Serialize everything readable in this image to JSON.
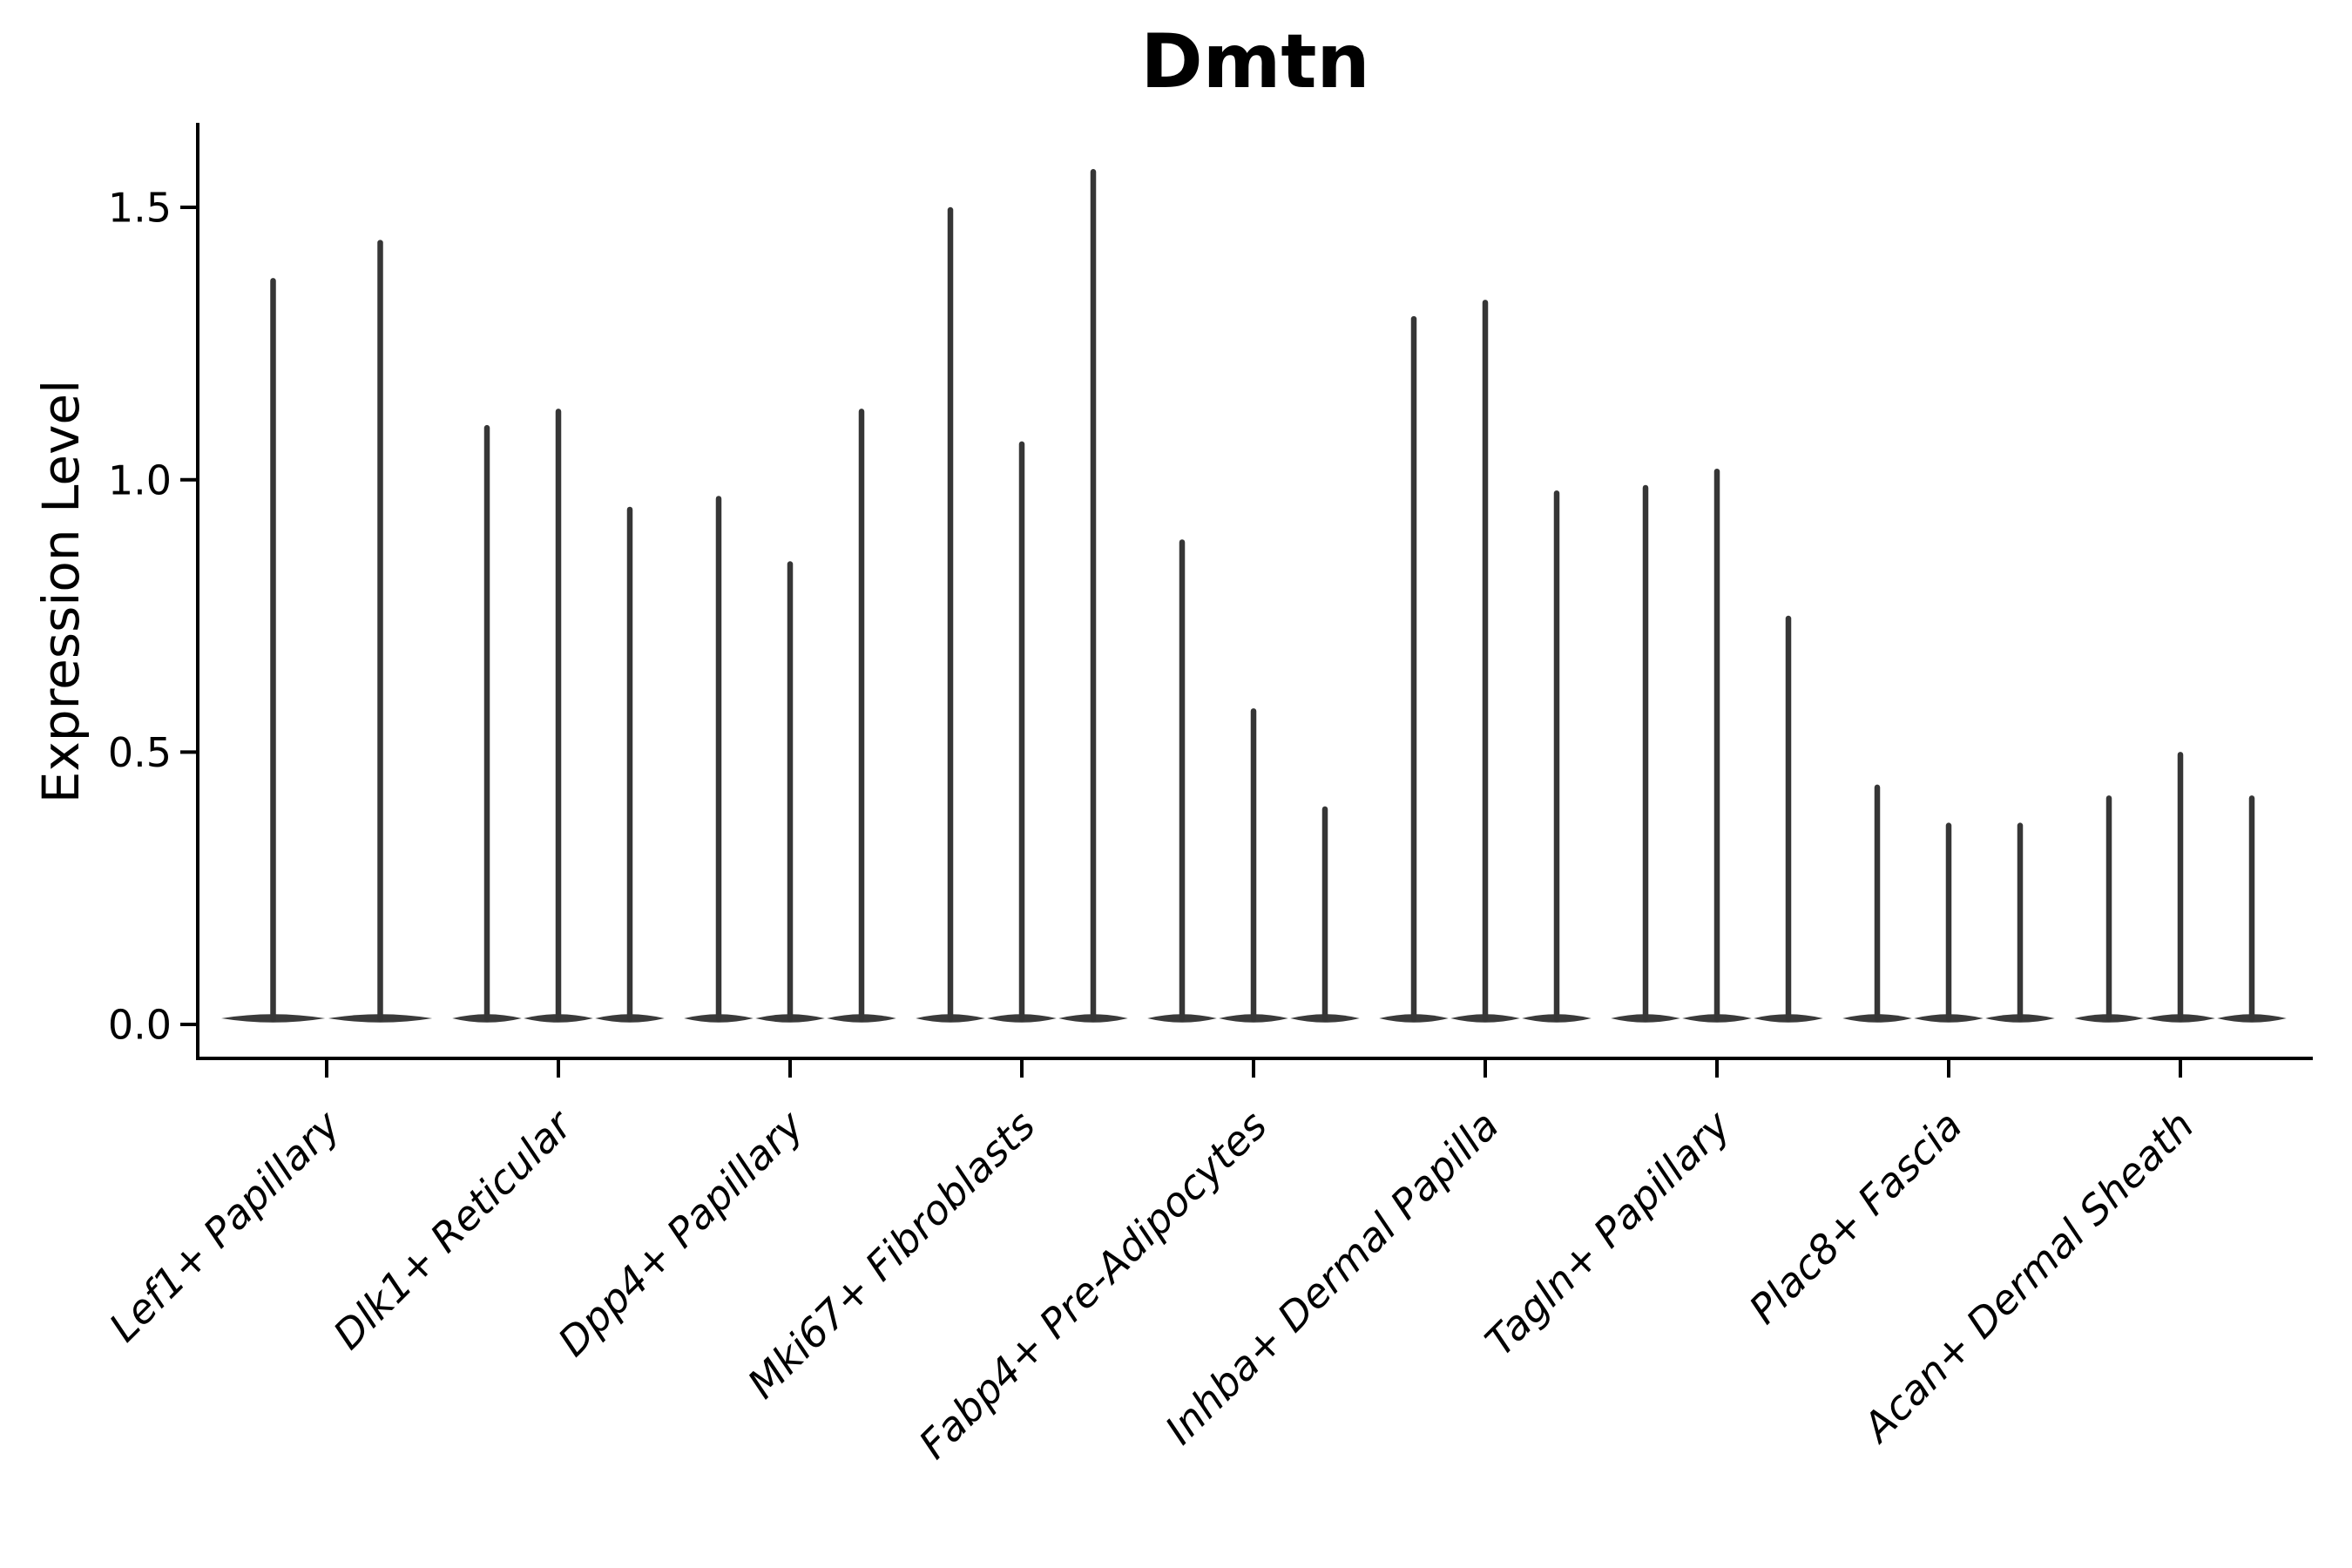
{
  "title": "Dmtn",
  "chart_data": {
    "type": "violin",
    "title": "Dmtn",
    "xlabel": "",
    "ylabel": "Expression Level",
    "ylim": [
      -0.06,
      1.66
    ],
    "yticks": [
      0.0,
      0.5,
      1.0,
      1.5
    ],
    "ytick_labels": [
      "0.0",
      "0.5",
      "1.0",
      "1.5"
    ],
    "grid": false,
    "legend": "none",
    "background_color": "#ffffff",
    "violin_color": "#3a3a3a",
    "spike_color": "#363636",
    "axis_color": "#000000",
    "distribution_note": "each violin is a near-zero-mass distribution: wide flat base at 0 with a single thin tail reaching its max value",
    "categories": [
      "Lef1+ Papillary",
      "Dlk1+ Reticular",
      "Dpp4+ Papillary",
      "Mki67+ Fibroblasts",
      "Fabp4+ Pre-Adipocytes",
      "Inhba+ Dermal Papilla",
      "Tagln+ Papillary",
      "Plac8+ Fascia",
      "Acan+ Dermal Sheath"
    ],
    "series": [
      {
        "name": "Lef1+ Papillary",
        "violin_max_values": [
          1.37,
          1.44
        ]
      },
      {
        "name": "Dlk1+ Reticular",
        "violin_max_values": [
          1.1,
          1.13,
          0.95
        ]
      },
      {
        "name": "Dpp4+ Papillary",
        "violin_max_values": [
          0.97,
          0.85,
          1.13
        ]
      },
      {
        "name": "Mki67+ Fibroblasts",
        "violin_max_values": [
          1.5,
          1.07,
          1.57
        ]
      },
      {
        "name": "Fabp4+ Pre-Adipocytes",
        "violin_max_values": [
          0.89,
          0.58,
          0.4
        ]
      },
      {
        "name": "Inhba+ Dermal Papilla",
        "violin_max_values": [
          1.3,
          1.33,
          0.98
        ]
      },
      {
        "name": "Tagln+ Papillary",
        "violin_max_values": [
          0.99,
          1.02,
          0.75
        ]
      },
      {
        "name": "Plac8+ Fascia",
        "violin_max_values": [
          0.44,
          0.37,
          0.37
        ]
      },
      {
        "name": "Acan+ Dermal Sheath",
        "violin_max_values": [
          0.42,
          0.5,
          0.42
        ]
      }
    ]
  }
}
